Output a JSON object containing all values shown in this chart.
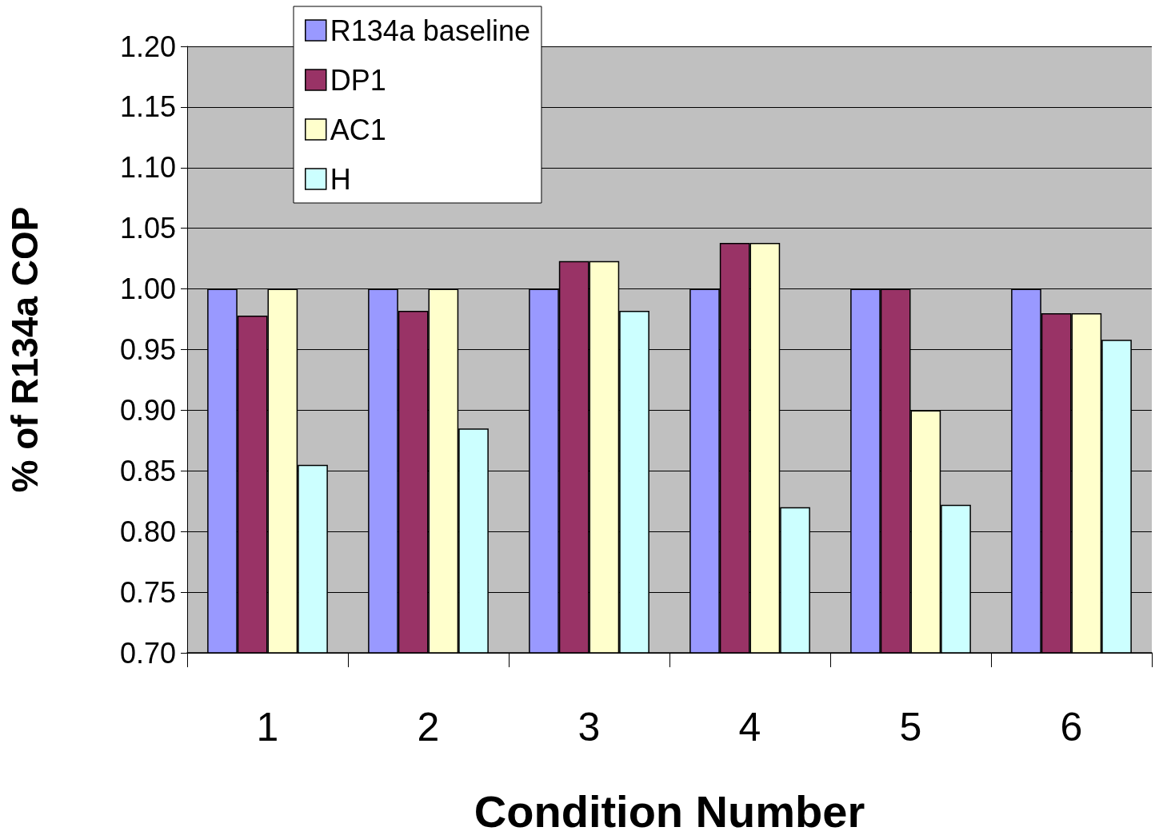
{
  "chart_data": {
    "type": "bar",
    "xlabel": "Condition Number",
    "ylabel": "% of R134a COP",
    "categories": [
      "1",
      "2",
      "3",
      "4",
      "5",
      "6"
    ],
    "series": [
      {
        "name": "R134a baseline",
        "color": "#9999ff",
        "values": [
          1.0,
          1.0,
          1.0,
          1.0,
          1.0,
          1.0
        ]
      },
      {
        "name": "DP1",
        "color": "#993366",
        "values": [
          0.978,
          0.982,
          1.023,
          1.038,
          1.0,
          0.98
        ]
      },
      {
        "name": "AC1",
        "color": "#ffffcc",
        "values": [
          1.0,
          1.0,
          1.023,
          1.038,
          0.9,
          0.98
        ]
      },
      {
        "name": "H",
        "color": "#ccffff",
        "values": [
          0.855,
          0.885,
          0.982,
          0.82,
          0.822,
          0.958
        ]
      }
    ],
    "ylim": [
      0.7,
      1.2
    ],
    "yticks": [
      {
        "value": 0.7,
        "label": "0.70"
      },
      {
        "value": 0.75,
        "label": "0.75"
      },
      {
        "value": 0.8,
        "label": "0.80"
      },
      {
        "value": 0.85,
        "label": "0.85"
      },
      {
        "value": 0.9,
        "label": "0.90"
      },
      {
        "value": 0.95,
        "label": "0.95"
      },
      {
        "value": 1.0,
        "label": "1.00"
      },
      {
        "value": 1.05,
        "label": "1.05"
      },
      {
        "value": 1.1,
        "label": "1.10"
      },
      {
        "value": 1.15,
        "label": "1.15"
      },
      {
        "value": 1.2,
        "label": "1.20"
      }
    ],
    "grid": "y",
    "legend": "top left"
  }
}
